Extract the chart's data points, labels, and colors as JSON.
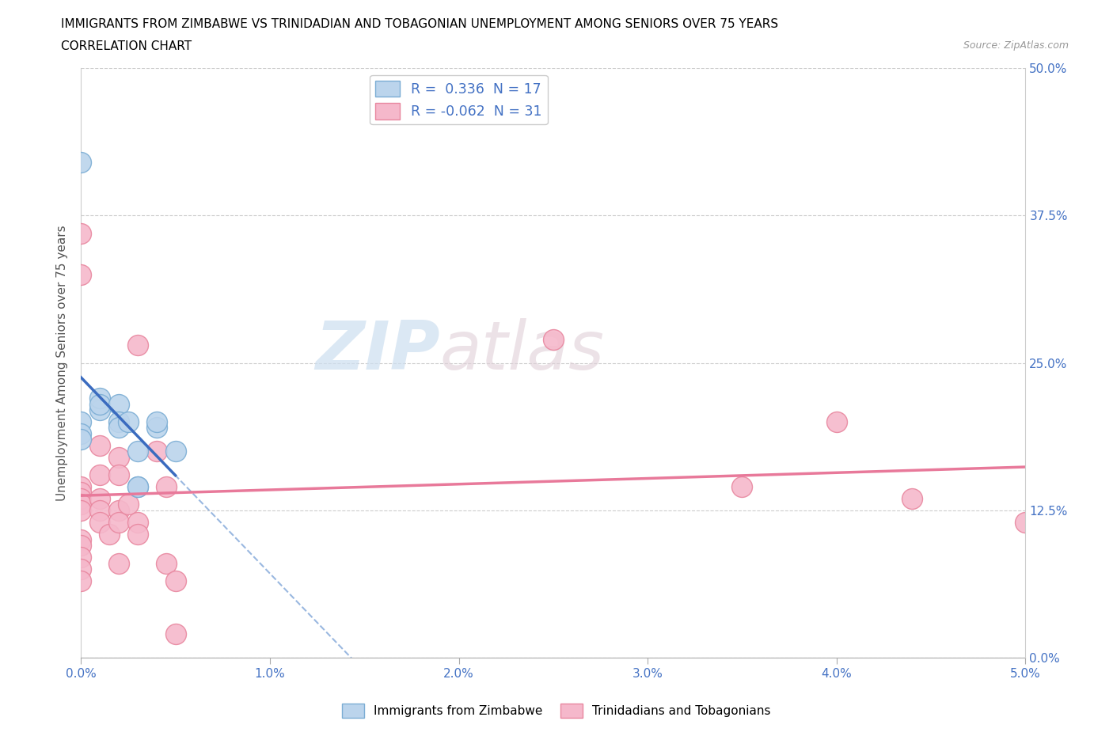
{
  "title_line1": "IMMIGRANTS FROM ZIMBABWE VS TRINIDADIAN AND TOBAGONIAN UNEMPLOYMENT AMONG SENIORS OVER 75 YEARS",
  "title_line2": "CORRELATION CHART",
  "source": "Source: ZipAtlas.com",
  "xlabel_ticks": [
    "0.0%",
    "1.0%",
    "2.0%",
    "3.0%",
    "4.0%",
    "5.0%"
  ],
  "ylabel_ticks": [
    "0.0%",
    "12.5%",
    "25.0%",
    "37.5%",
    "50.0%"
  ],
  "xlim": [
    0.0,
    0.05
  ],
  "ylim": [
    0.0,
    0.5
  ],
  "ylabel": "Unemployment Among Seniors over 75 years",
  "zimbabwe_points": [
    [
      0.0,
      0.42
    ],
    [
      0.0,
      0.2
    ],
    [
      0.0,
      0.19
    ],
    [
      0.0,
      0.185
    ],
    [
      0.001,
      0.21
    ],
    [
      0.001,
      0.22
    ],
    [
      0.001,
      0.215
    ],
    [
      0.002,
      0.215
    ],
    [
      0.002,
      0.2
    ],
    [
      0.002,
      0.195
    ],
    [
      0.0025,
      0.2
    ],
    [
      0.003,
      0.175
    ],
    [
      0.003,
      0.145
    ],
    [
      0.003,
      0.145
    ],
    [
      0.004,
      0.195
    ],
    [
      0.004,
      0.2
    ],
    [
      0.005,
      0.175
    ]
  ],
  "trinidadian_points": [
    [
      0.0,
      0.36
    ],
    [
      0.0,
      0.325
    ],
    [
      0.0,
      0.145
    ],
    [
      0.0,
      0.14
    ],
    [
      0.0,
      0.135
    ],
    [
      0.0,
      0.13
    ],
    [
      0.0,
      0.125
    ],
    [
      0.0,
      0.1
    ],
    [
      0.0,
      0.095
    ],
    [
      0.0,
      0.085
    ],
    [
      0.0,
      0.075
    ],
    [
      0.0,
      0.065
    ],
    [
      0.001,
      0.18
    ],
    [
      0.001,
      0.155
    ],
    [
      0.001,
      0.135
    ],
    [
      0.001,
      0.125
    ],
    [
      0.001,
      0.115
    ],
    [
      0.0015,
      0.105
    ],
    [
      0.002,
      0.17
    ],
    [
      0.002,
      0.155
    ],
    [
      0.002,
      0.125
    ],
    [
      0.002,
      0.115
    ],
    [
      0.002,
      0.08
    ],
    [
      0.0025,
      0.13
    ],
    [
      0.003,
      0.265
    ],
    [
      0.003,
      0.115
    ],
    [
      0.003,
      0.105
    ],
    [
      0.004,
      0.175
    ],
    [
      0.0045,
      0.145
    ],
    [
      0.0045,
      0.08
    ],
    [
      0.005,
      0.065
    ],
    [
      0.005,
      0.02
    ],
    [
      0.025,
      0.27
    ],
    [
      0.035,
      0.145
    ],
    [
      0.04,
      0.2
    ],
    [
      0.044,
      0.135
    ],
    [
      0.05,
      0.115
    ]
  ],
  "zimbabwe_color": "#bbd4ec",
  "zimbabwe_edge_color": "#7badd4",
  "trinidadian_color": "#f5b8cb",
  "trinidadian_edge_color": "#e8879f",
  "trend_blue_solid_color": "#3a6bbf",
  "trend_blue_dash_color": "#9ab8e0",
  "trend_pink_color": "#e8799a",
  "watermark_text": "ZIPatlas",
  "watermark_color": "#dce8f5",
  "watermark_pink": "#e8d5e0",
  "background_color": "#ffffff",
  "grid_color": "#cccccc",
  "title_color": "#000000",
  "right_tick_color": "#4472c4",
  "bottom_tick_color": "#4472c4",
  "legend_R_color": "#4472c4",
  "legend_N_color": "#4472c4"
}
